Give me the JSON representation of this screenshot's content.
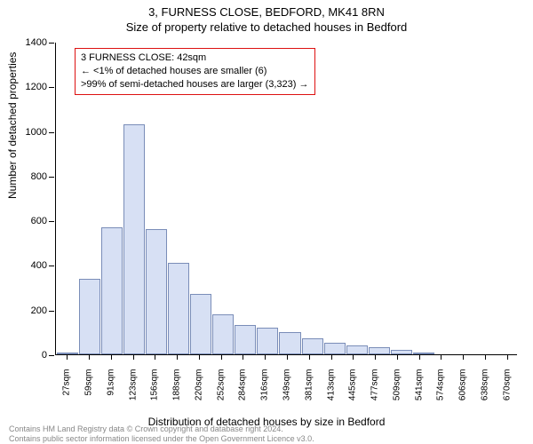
{
  "title_line1": "3, FURNESS CLOSE, BEDFORD, MK41 8RN",
  "title_line2": "Size of property relative to detached houses in Bedford",
  "ylabel": "Number of detached properties",
  "xlabel": "Distribution of detached houses by size in Bedford",
  "chart": {
    "type": "histogram",
    "ylim": [
      0,
      1400
    ],
    "ytick_step": 200,
    "bar_fill": "#d7e0f4",
    "bar_stroke": "#7a8db8",
    "background_color": "#ffffff",
    "axis_color": "#000000",
    "xticks": [
      "27sqm",
      "59sqm",
      "91sqm",
      "123sqm",
      "156sqm",
      "188sqm",
      "220sqm",
      "252sqm",
      "284sqm",
      "316sqm",
      "349sqm",
      "381sqm",
      "413sqm",
      "445sqm",
      "477sqm",
      "509sqm",
      "541sqm",
      "574sqm",
      "606sqm",
      "638sqm",
      "670sqm"
    ],
    "values": [
      6,
      340,
      570,
      1030,
      560,
      410,
      270,
      180,
      130,
      120,
      100,
      70,
      50,
      40,
      30,
      20,
      10,
      0,
      0,
      0,
      0
    ]
  },
  "annotation": {
    "line1": "3 FURNESS CLOSE: 42sqm",
    "line2": "← <1% of detached houses are smaller (6)",
    "line3": ">99% of semi-detached houses are larger (3,323) →",
    "border_color": "#d11"
  },
  "footer": {
    "line1": "Contains HM Land Registry data © Crown copyright and database right 2024.",
    "line2": "Contains public sector information licensed under the Open Government Licence v3.0."
  }
}
